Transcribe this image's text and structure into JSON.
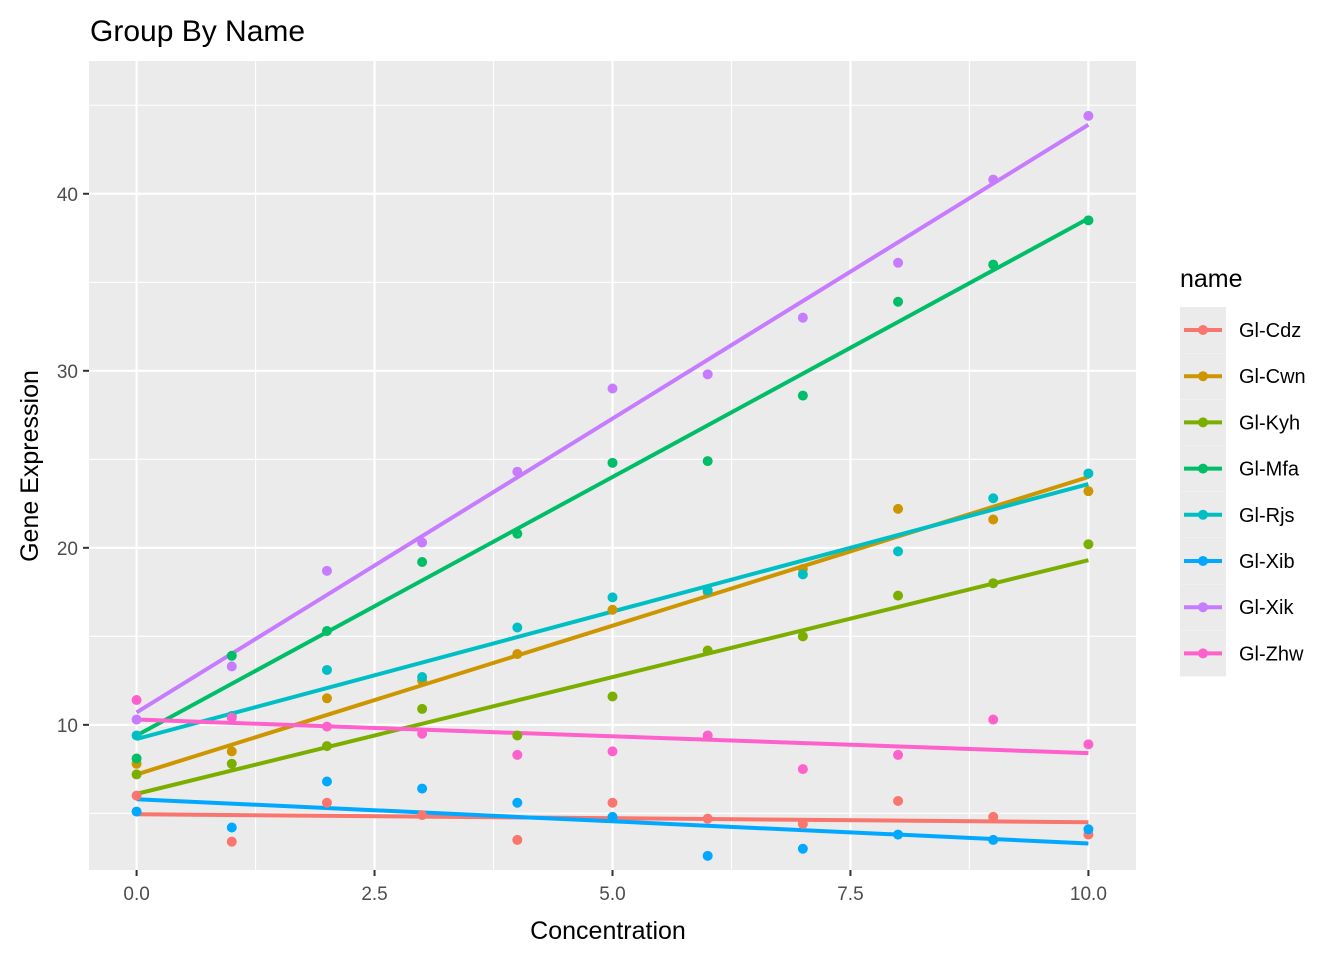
{
  "chart_data": {
    "type": "scatter",
    "title": "Group By Name",
    "xlabel": "Concentration",
    "ylabel": "Gene Expression",
    "xlim": [
      -0.5,
      10.5
    ],
    "ylim": [
      1.8,
      47.5
    ],
    "x_ticks": [
      0,
      2.5,
      5,
      7.5,
      10
    ],
    "x_tick_labels": [
      "0.0",
      "2.5",
      "5.0",
      "7.5",
      "10.0"
    ],
    "y_ticks": [
      10,
      20,
      30,
      40
    ],
    "y_tick_labels": [
      "10",
      "20",
      "30",
      "40"
    ],
    "grid": true,
    "legend": {
      "title": "name",
      "position": "right"
    },
    "trend": "linear fit per series",
    "x": [
      0,
      1,
      2,
      3,
      4,
      5,
      6,
      7,
      8,
      9,
      10
    ],
    "series": [
      {
        "name": "Gl-Cdz",
        "color": "#F8766D",
        "values": [
          6.0,
          3.4,
          5.6,
          4.9,
          3.5,
          5.6,
          4.7,
          4.4,
          5.7,
          4.8,
          3.8
        ],
        "fit": [
          4.95,
          4.5
        ]
      },
      {
        "name": "Gl-Cwn",
        "color": "#CD9600",
        "values": [
          7.8,
          8.5,
          11.5,
          12.5,
          14.0,
          16.5,
          17.5,
          18.8,
          22.2,
          21.6,
          23.2
        ],
        "fit": [
          7.2,
          24.0
        ]
      },
      {
        "name": "Gl-Kyh",
        "color": "#7CAE00",
        "values": [
          7.2,
          7.8,
          8.8,
          10.9,
          9.4,
          11.6,
          14.2,
          15.0,
          17.3,
          18.0,
          20.2
        ],
        "fit": [
          6.1,
          19.3
        ]
      },
      {
        "name": "Gl-Mfa",
        "color": "#00BE67",
        "values": [
          8.1,
          13.9,
          15.3,
          19.2,
          20.8,
          24.8,
          24.9,
          28.6,
          33.9,
          36.0,
          38.5
        ],
        "fit": [
          9.4,
          38.6
        ]
      },
      {
        "name": "Gl-Rjs",
        "color": "#00BFC4",
        "values": [
          9.4,
          10.5,
          13.1,
          12.7,
          15.5,
          17.2,
          17.6,
          18.5,
          19.8,
          22.8,
          24.2
        ],
        "fit": [
          9.2,
          23.6
        ]
      },
      {
        "name": "Gl-Xib",
        "color": "#00A9FF",
        "values": [
          5.1,
          4.2,
          6.8,
          6.4,
          5.6,
          4.8,
          2.6,
          3.0,
          3.8,
          3.5,
          4.1
        ],
        "fit": [
          5.8,
          3.3
        ]
      },
      {
        "name": "Gl-Xik",
        "color": "#C77CFF",
        "values": [
          10.3,
          13.3,
          18.7,
          20.3,
          24.3,
          29.0,
          29.8,
          33.0,
          36.1,
          40.8,
          44.4
        ],
        "fit": [
          10.7,
          43.9
        ]
      },
      {
        "name": "Gl-Zhw",
        "color": "#FF61CC",
        "values": [
          11.4,
          10.4,
          9.9,
          9.5,
          8.3,
          8.5,
          9.4,
          7.5,
          8.3,
          10.3,
          8.9
        ],
        "fit": [
          10.3,
          8.4
        ]
      }
    ]
  }
}
